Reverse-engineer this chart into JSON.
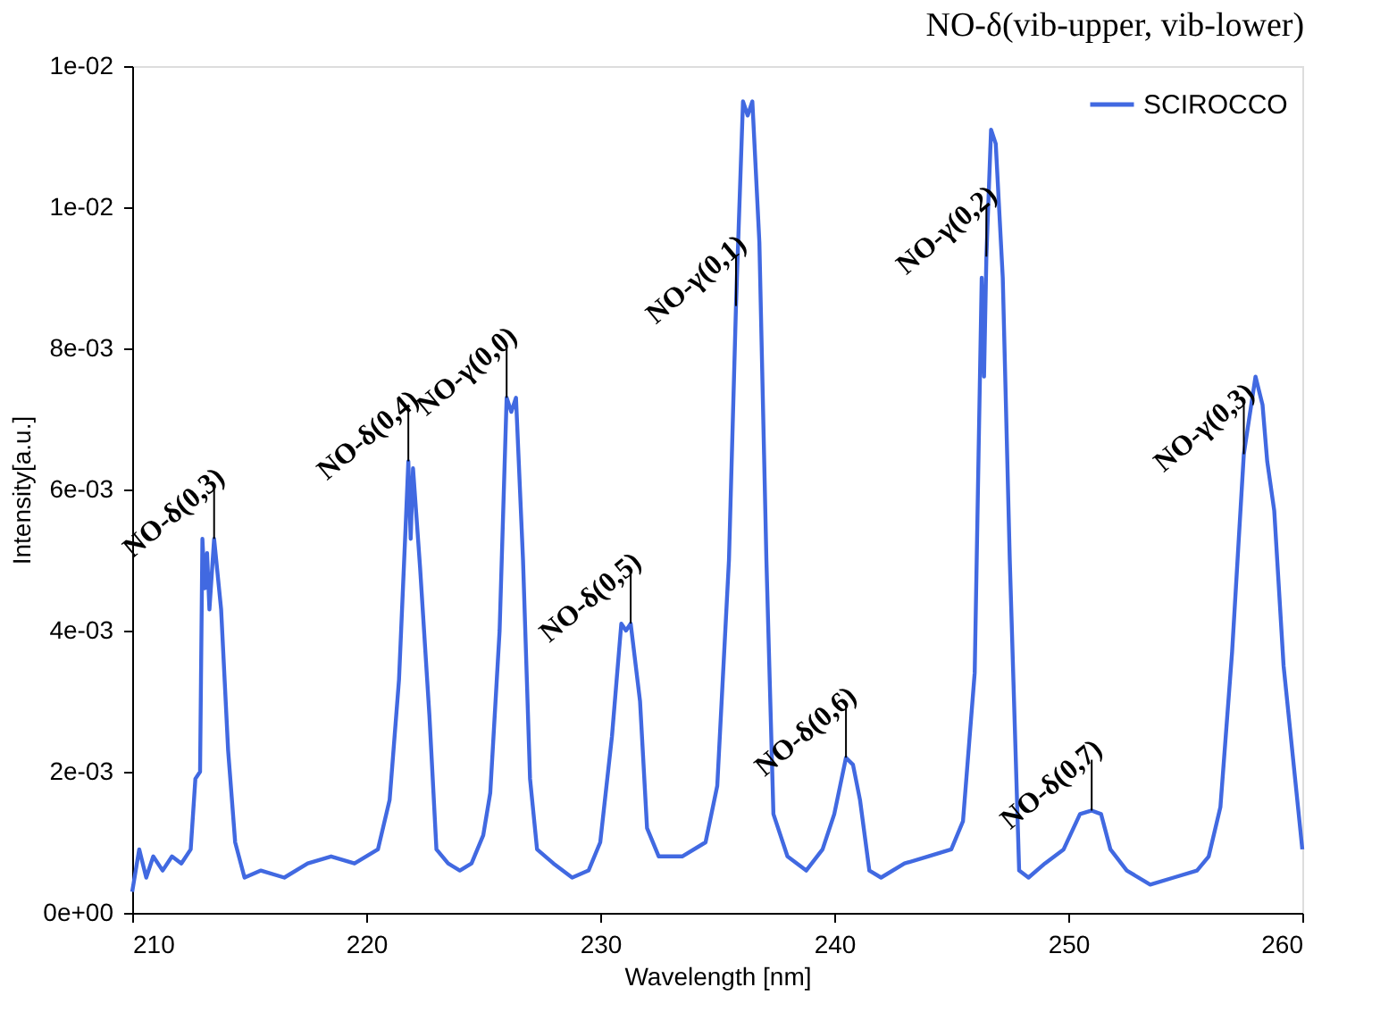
{
  "chart_data": {
    "type": "line",
    "title": "NO-δ(vib-upper, vib-lower)",
    "xlabel": "Wavelength [nm]",
    "ylabel": "Intensity[a.u.]",
    "xlim": [
      210,
      260
    ],
    "xticks": [
      210,
      220,
      230,
      240,
      250,
      260
    ],
    "ylim": [
      0,
      0.012
    ],
    "yticks": [
      {
        "value": 0,
        "label": "0e+00"
      },
      {
        "value": 0.002,
        "label": "2e-03"
      },
      {
        "value": 0.004,
        "label": "4e-03"
      },
      {
        "value": 0.006,
        "label": "6e-03"
      },
      {
        "value": 0.008,
        "label": "8e-03"
      },
      {
        "value": 0.01,
        "label": "1e-02"
      },
      {
        "value": 0.012,
        "label": "1e-02"
      }
    ],
    "grid": false,
    "legend": "top right",
    "marker": "none",
    "line_style": "solid",
    "x": [
      210.0,
      210.3,
      210.6,
      210.9,
      211.3,
      211.7,
      212.1,
      212.5,
      212.7,
      212.9,
      213.0,
      213.1,
      213.2,
      213.3,
      213.5,
      213.8,
      214.1,
      214.4,
      214.8,
      215.5,
      216.5,
      217.5,
      218.5,
      219.5,
      220.5,
      221.0,
      221.4,
      221.7,
      221.8,
      221.9,
      222.0,
      222.3,
      222.7,
      223.0,
      223.5,
      224.0,
      224.5,
      225.0,
      225.3,
      225.7,
      226.0,
      226.2,
      226.4,
      226.7,
      227.0,
      227.3,
      228.0,
      228.8,
      229.5,
      230.0,
      230.5,
      230.9,
      231.1,
      231.3,
      231.7,
      232.0,
      232.5,
      233.5,
      234.5,
      235.0,
      235.5,
      235.8,
      236.1,
      236.3,
      236.5,
      236.8,
      237.1,
      237.4,
      238.0,
      238.8,
      239.5,
      240.0,
      240.5,
      240.8,
      241.1,
      241.5,
      242.0,
      243.0,
      244.0,
      245.0,
      245.5,
      246.0,
      246.3,
      246.4,
      246.5,
      246.7,
      246.9,
      247.2,
      247.5,
      247.9,
      248.3,
      249.0,
      249.8,
      250.5,
      251.0,
      251.4,
      251.8,
      252.5,
      253.5,
      254.5,
      255.5,
      256.0,
      256.5,
      257.0,
      257.5,
      258.0,
      258.3,
      258.5,
      258.8,
      259.2,
      260.0
    ],
    "series": [
      {
        "name": "SCIROCCO",
        "color": "#4169e1",
        "values": [
          0.0003,
          0.0009,
          0.0005,
          0.0008,
          0.0006,
          0.0008,
          0.0007,
          0.0009,
          0.0019,
          0.002,
          0.0053,
          0.0046,
          0.0051,
          0.0043,
          0.0053,
          0.0043,
          0.0023,
          0.001,
          0.0005,
          0.0006,
          0.0005,
          0.0007,
          0.0008,
          0.0007,
          0.0009,
          0.0016,
          0.0033,
          0.0056,
          0.0064,
          0.0053,
          0.0063,
          0.0049,
          0.0028,
          0.0009,
          0.0007,
          0.0006,
          0.0007,
          0.0011,
          0.0017,
          0.004,
          0.0073,
          0.0071,
          0.0073,
          0.005,
          0.0019,
          0.0009,
          0.0007,
          0.0005,
          0.0006,
          0.001,
          0.0025,
          0.0041,
          0.004,
          0.0041,
          0.003,
          0.0012,
          0.0008,
          0.0008,
          0.001,
          0.0018,
          0.005,
          0.0086,
          0.0115,
          0.0113,
          0.0115,
          0.0095,
          0.005,
          0.0014,
          0.0008,
          0.0006,
          0.0009,
          0.0014,
          0.0022,
          0.0021,
          0.0016,
          0.0006,
          0.0005,
          0.0007,
          0.0008,
          0.0009,
          0.0013,
          0.0034,
          0.009,
          0.0076,
          0.0093,
          0.0111,
          0.0109,
          0.009,
          0.005,
          0.0006,
          0.0005,
          0.0007,
          0.0009,
          0.0014,
          0.00145,
          0.0014,
          0.0009,
          0.0006,
          0.0004,
          0.0005,
          0.0006,
          0.0008,
          0.0015,
          0.0037,
          0.0065,
          0.0076,
          0.0072,
          0.0064,
          0.0057,
          0.0035,
          0.0009
        ]
      }
    ],
    "annotations": [
      {
        "text": "NO-δ(0,3)",
        "x": 213.5,
        "y": 0.0053
      },
      {
        "text": "NO-δ(0,4)",
        "x": 221.8,
        "y": 0.0064
      },
      {
        "text": "NO-γ(0,0)",
        "x": 226.0,
        "y": 0.0073
      },
      {
        "text": "NO-δ(0,5)",
        "x": 231.3,
        "y": 0.0041
      },
      {
        "text": "NO-γ(0,1)",
        "x": 235.8,
        "y": 0.0086
      },
      {
        "text": "NO-δ(0,6)",
        "x": 240.5,
        "y": 0.0022
      },
      {
        "text": "NO-γ(0,2)",
        "x": 246.5,
        "y": 0.0093
      },
      {
        "text": "NO-δ(0,7)",
        "x": 251.0,
        "y": 0.00145
      },
      {
        "text": "NO-γ(0,3)",
        "x": 257.5,
        "y": 0.0065
      }
    ]
  }
}
